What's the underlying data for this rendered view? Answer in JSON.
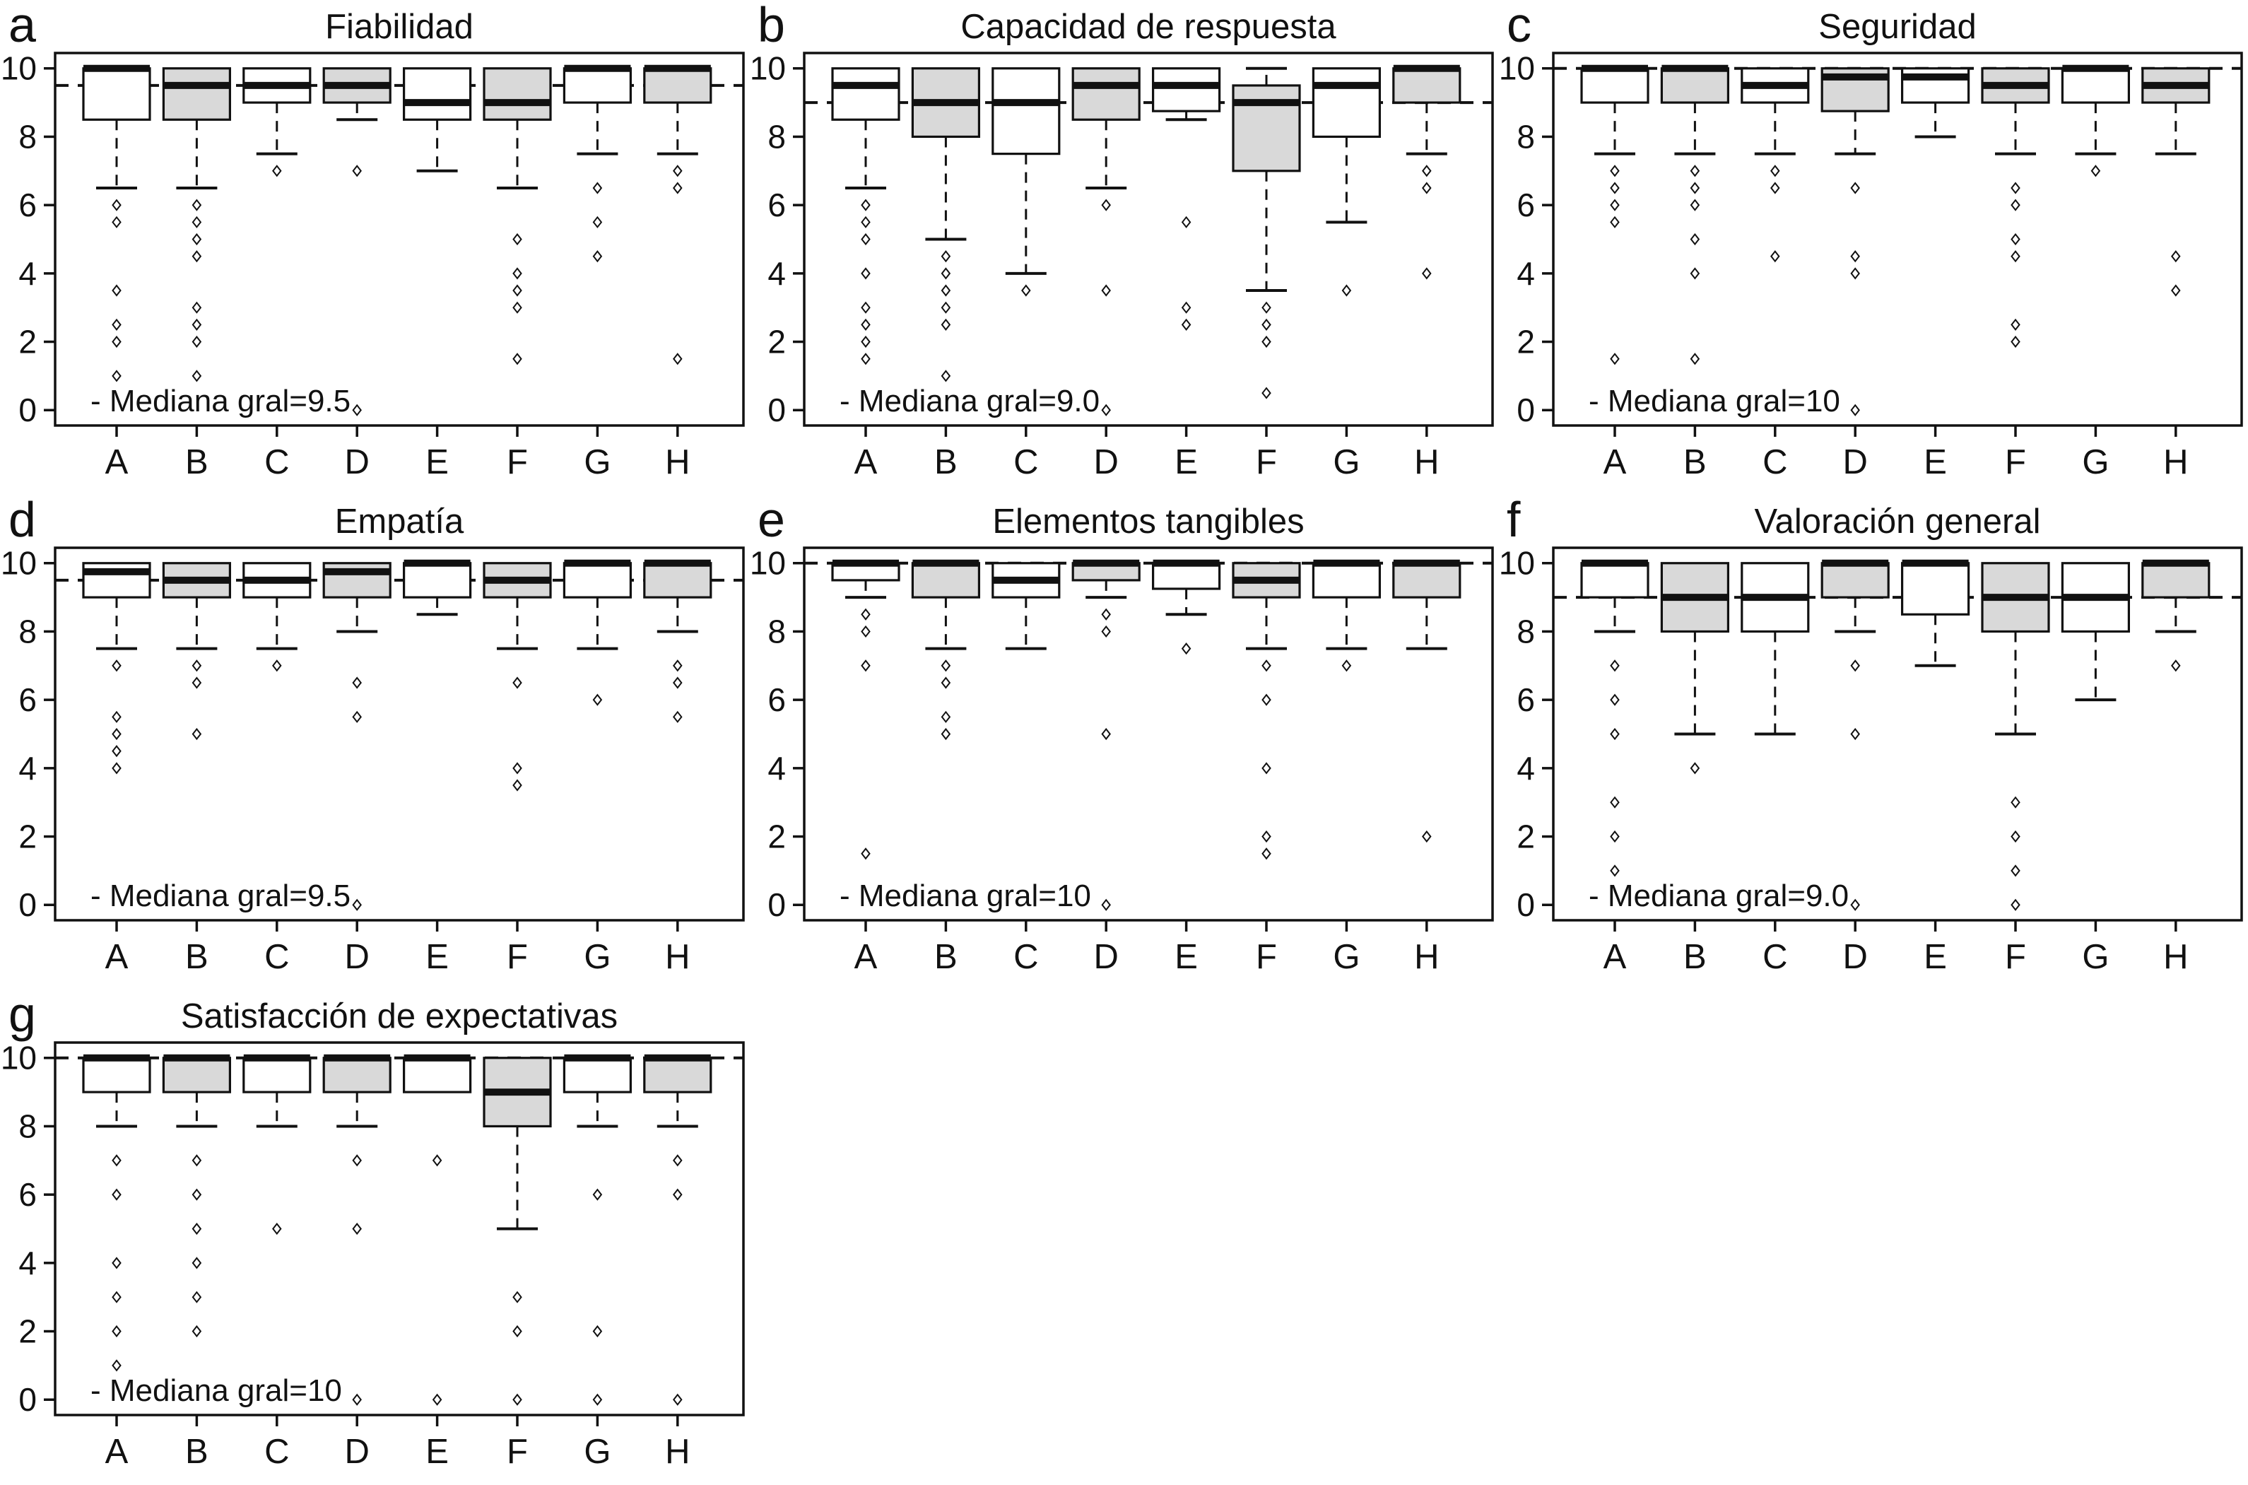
{
  "style": {
    "stroke_color": "#111111",
    "box_white": "#ffffff",
    "box_gray": "#d9d9d9",
    "background": "#ffffff"
  },
  "chart_data": {
    "type": "boxplot-grid",
    "ylim": [
      0,
      10
    ],
    "yticks": [
      0,
      2,
      4,
      6,
      8,
      10
    ],
    "grid": "off",
    "categories": [
      "A",
      "B",
      "C",
      "D",
      "E",
      "F",
      "G",
      "H"
    ],
    "fill_pattern": [
      "white",
      "gray",
      "white",
      "gray",
      "white",
      "gray",
      "white",
      "gray"
    ],
    "panels": [
      {
        "letter": "a",
        "title": "Fiabilidad",
        "overall_median": 9.5,
        "annotation": "- Mediana gral=9.5",
        "boxes": [
          {
            "category": "A",
            "q1": 8.5,
            "median": 10,
            "q3": 10,
            "whisker_low": 6.5,
            "whisker_high": 10,
            "outliers": [
              6,
              5.5,
              3.5,
              2.5,
              2,
              1
            ]
          },
          {
            "category": "B",
            "q1": 8.5,
            "median": 9.5,
            "q3": 10,
            "whisker_low": 6.5,
            "whisker_high": 10,
            "outliers": [
              6,
              5.5,
              5,
              4.5,
              3,
              2.5,
              2,
              1
            ]
          },
          {
            "category": "C",
            "q1": 9,
            "median": 9.5,
            "q3": 10,
            "whisker_low": 7.5,
            "whisker_high": 10,
            "outliers": [
              7
            ]
          },
          {
            "category": "D",
            "q1": 9,
            "median": 9.5,
            "q3": 10,
            "whisker_low": 8.5,
            "whisker_high": 10,
            "outliers": [
              7,
              0
            ]
          },
          {
            "category": "E",
            "q1": 8.5,
            "median": 9,
            "q3": 10,
            "whisker_low": 7,
            "whisker_high": 10,
            "outliers": []
          },
          {
            "category": "F",
            "q1": 8.5,
            "median": 9,
            "q3": 10,
            "whisker_low": 6.5,
            "whisker_high": 10,
            "outliers": [
              5,
              4,
              3.5,
              3,
              1.5
            ]
          },
          {
            "category": "G",
            "q1": 9,
            "median": 10,
            "q3": 10,
            "whisker_low": 7.5,
            "whisker_high": 10,
            "outliers": [
              6.5,
              5.5,
              4.5
            ]
          },
          {
            "category": "H",
            "q1": 9,
            "median": 10,
            "q3": 10,
            "whisker_low": 7.5,
            "whisker_high": 10,
            "outliers": [
              7,
              6.5,
              1.5
            ]
          }
        ]
      },
      {
        "letter": "b",
        "title": "Capacidad de respuesta",
        "overall_median": 9.0,
        "annotation": "- Mediana gral=9.0",
        "boxes": [
          {
            "category": "A",
            "q1": 8.5,
            "median": 9.5,
            "q3": 10,
            "whisker_low": 6.5,
            "whisker_high": 10,
            "outliers": [
              6,
              5.5,
              5,
              4,
              3,
              2.5,
              2,
              1.5
            ]
          },
          {
            "category": "B",
            "q1": 8,
            "median": 9,
            "q3": 10,
            "whisker_low": 5,
            "whisker_high": 10,
            "outliers": [
              4.5,
              4,
              3.5,
              3,
              2.5,
              1
            ]
          },
          {
            "category": "C",
            "q1": 7.5,
            "median": 9,
            "q3": 10,
            "whisker_low": 4,
            "whisker_high": 10,
            "outliers": [
              3.5
            ]
          },
          {
            "category": "D",
            "q1": 8.5,
            "median": 9.5,
            "q3": 10,
            "whisker_low": 6.5,
            "whisker_high": 10,
            "outliers": [
              6,
              3.5,
              0
            ]
          },
          {
            "category": "E",
            "q1": 8.75,
            "median": 9.5,
            "q3": 10,
            "whisker_low": 8.5,
            "whisker_high": 10,
            "outliers": [
              5.5,
              3,
              2.5
            ]
          },
          {
            "category": "F",
            "q1": 7,
            "median": 9,
            "q3": 9.5,
            "whisker_low": 3.5,
            "whisker_high": 10,
            "outliers": [
              3,
              2.5,
              2,
              0.5
            ]
          },
          {
            "category": "G",
            "q1": 8,
            "median": 9.5,
            "q3": 10,
            "whisker_low": 5.5,
            "whisker_high": 10,
            "outliers": [
              3.5
            ]
          },
          {
            "category": "H",
            "q1": 9,
            "median": 10,
            "q3": 10,
            "whisker_low": 7.5,
            "whisker_high": 10,
            "outliers": [
              7,
              6.5,
              4
            ]
          }
        ]
      },
      {
        "letter": "c",
        "title": "Seguridad",
        "overall_median": 10,
        "annotation": "- Mediana gral=10",
        "boxes": [
          {
            "category": "A",
            "q1": 9,
            "median": 10,
            "q3": 10,
            "whisker_low": 7.5,
            "whisker_high": 10,
            "outliers": [
              7,
              6.5,
              6,
              5.5,
              1.5
            ]
          },
          {
            "category": "B",
            "q1": 9,
            "median": 10,
            "q3": 10,
            "whisker_low": 7.5,
            "whisker_high": 10,
            "outliers": [
              7,
              6.5,
              6,
              5,
              4,
              1.5
            ]
          },
          {
            "category": "C",
            "q1": 9,
            "median": 9.5,
            "q3": 10,
            "whisker_low": 7.5,
            "whisker_high": 10,
            "outliers": [
              7,
              6.5,
              4.5
            ]
          },
          {
            "category": "D",
            "q1": 8.75,
            "median": 9.75,
            "q3": 10,
            "whisker_low": 7.5,
            "whisker_high": 10,
            "outliers": [
              6.5,
              4.5,
              4,
              0
            ]
          },
          {
            "category": "E",
            "q1": 9,
            "median": 9.75,
            "q3": 10,
            "whisker_low": 8,
            "whisker_high": 10,
            "outliers": []
          },
          {
            "category": "F",
            "q1": 9,
            "median": 9.5,
            "q3": 10,
            "whisker_low": 7.5,
            "whisker_high": 10,
            "outliers": [
              6.5,
              6,
              5,
              4.5,
              2.5,
              2
            ]
          },
          {
            "category": "G",
            "q1": 9,
            "median": 10,
            "q3": 10,
            "whisker_low": 7.5,
            "whisker_high": 10,
            "outliers": [
              7
            ]
          },
          {
            "category": "H",
            "q1": 9,
            "median": 9.5,
            "q3": 10,
            "whisker_low": 7.5,
            "whisker_high": 10,
            "outliers": [
              4.5,
              3.5
            ]
          }
        ]
      },
      {
        "letter": "d",
        "title": "Empatía",
        "overall_median": 9.5,
        "annotation": "- Mediana gral=9.5",
        "boxes": [
          {
            "category": "A",
            "q1": 9,
            "median": 9.75,
            "q3": 10,
            "whisker_low": 7.5,
            "whisker_high": 10,
            "outliers": [
              7,
              5.5,
              5,
              4.5,
              4
            ]
          },
          {
            "category": "B",
            "q1": 9,
            "median": 9.5,
            "q3": 10,
            "whisker_low": 7.5,
            "whisker_high": 10,
            "outliers": [
              7,
              6.5,
              5
            ]
          },
          {
            "category": "C",
            "q1": 9,
            "median": 9.5,
            "q3": 10,
            "whisker_low": 7.5,
            "whisker_high": 10,
            "outliers": [
              7
            ]
          },
          {
            "category": "D",
            "q1": 9,
            "median": 9.75,
            "q3": 10,
            "whisker_low": 8,
            "whisker_high": 10,
            "outliers": [
              6.5,
              5.5,
              0
            ]
          },
          {
            "category": "E",
            "q1": 9,
            "median": 10,
            "q3": 10,
            "whisker_low": 8.5,
            "whisker_high": 10,
            "outliers": []
          },
          {
            "category": "F",
            "q1": 9,
            "median": 9.5,
            "q3": 10,
            "whisker_low": 7.5,
            "whisker_high": 10,
            "outliers": [
              6.5,
              4,
              3.5
            ]
          },
          {
            "category": "G",
            "q1": 9,
            "median": 10,
            "q3": 10,
            "whisker_low": 7.5,
            "whisker_high": 10,
            "outliers": [
              6
            ]
          },
          {
            "category": "H",
            "q1": 9,
            "median": 10,
            "q3": 10,
            "whisker_low": 8,
            "whisker_high": 10,
            "outliers": [
              7,
              6.5,
              5.5
            ]
          }
        ]
      },
      {
        "letter": "e",
        "title": "Elementos tangibles",
        "overall_median": 10,
        "annotation": "- Mediana gral=10",
        "boxes": [
          {
            "category": "A",
            "q1": 9.5,
            "median": 10,
            "q3": 10,
            "whisker_low": 9,
            "whisker_high": 10,
            "outliers": [
              8.5,
              8,
              7,
              1.5
            ]
          },
          {
            "category": "B",
            "q1": 9,
            "median": 10,
            "q3": 10,
            "whisker_low": 7.5,
            "whisker_high": 10,
            "outliers": [
              7,
              6.5,
              5.5,
              5
            ]
          },
          {
            "category": "C",
            "q1": 9,
            "median": 9.5,
            "q3": 10,
            "whisker_low": 7.5,
            "whisker_high": 10,
            "outliers": []
          },
          {
            "category": "D",
            "q1": 9.5,
            "median": 10,
            "q3": 10,
            "whisker_low": 9,
            "whisker_high": 10,
            "outliers": [
              8.5,
              8,
              5,
              0
            ]
          },
          {
            "category": "E",
            "q1": 9.25,
            "median": 10,
            "q3": 10,
            "whisker_low": 8.5,
            "whisker_high": 10,
            "outliers": [
              7.5
            ]
          },
          {
            "category": "F",
            "q1": 9,
            "median": 9.5,
            "q3": 10,
            "whisker_low": 7.5,
            "whisker_high": 10,
            "outliers": [
              7,
              6,
              4,
              2,
              1.5
            ]
          },
          {
            "category": "G",
            "q1": 9,
            "median": 10,
            "q3": 10,
            "whisker_low": 7.5,
            "whisker_high": 10,
            "outliers": [
              7
            ]
          },
          {
            "category": "H",
            "q1": 9,
            "median": 10,
            "q3": 10,
            "whisker_low": 7.5,
            "whisker_high": 10,
            "outliers": [
              2
            ]
          }
        ]
      },
      {
        "letter": "f",
        "title": "Valoración general",
        "overall_median": 9.0,
        "annotation": "- Mediana gral=9.0",
        "boxes": [
          {
            "category": "A",
            "q1": 9,
            "median": 10,
            "q3": 10,
            "whisker_low": 8,
            "whisker_high": 10,
            "outliers": [
              7,
              6,
              5,
              3,
              2,
              1
            ]
          },
          {
            "category": "B",
            "q1": 8,
            "median": 9,
            "q3": 10,
            "whisker_low": 5,
            "whisker_high": 10,
            "outliers": [
              4
            ]
          },
          {
            "category": "C",
            "q1": 8,
            "median": 9,
            "q3": 10,
            "whisker_low": 5,
            "whisker_high": 10,
            "outliers": []
          },
          {
            "category": "D",
            "q1": 9,
            "median": 10,
            "q3": 10,
            "whisker_low": 8,
            "whisker_high": 10,
            "outliers": [
              7,
              5,
              0
            ]
          },
          {
            "category": "E",
            "q1": 8.5,
            "median": 10,
            "q3": 10,
            "whisker_low": 7,
            "whisker_high": 10,
            "outliers": []
          },
          {
            "category": "F",
            "q1": 8,
            "median": 9,
            "q3": 10,
            "whisker_low": 5,
            "whisker_high": 10,
            "outliers": [
              3,
              2,
              1,
              0
            ]
          },
          {
            "category": "G",
            "q1": 8,
            "median": 9,
            "q3": 10,
            "whisker_low": 6,
            "whisker_high": 10,
            "outliers": []
          },
          {
            "category": "H",
            "q1": 9,
            "median": 10,
            "q3": 10,
            "whisker_low": 8,
            "whisker_high": 10,
            "outliers": [
              7
            ]
          }
        ]
      },
      {
        "letter": "g",
        "title": "Satisfacción de expectativas",
        "overall_median": 10,
        "annotation": "- Mediana gral=10",
        "boxes": [
          {
            "category": "A",
            "q1": 9,
            "median": 10,
            "q3": 10,
            "whisker_low": 8,
            "whisker_high": 10,
            "outliers": [
              7,
              6,
              4,
              3,
              2,
              1
            ]
          },
          {
            "category": "B",
            "q1": 9,
            "median": 10,
            "q3": 10,
            "whisker_low": 8,
            "whisker_high": 10,
            "outliers": [
              7,
              6,
              5,
              4,
              3,
              2
            ]
          },
          {
            "category": "C",
            "q1": 9,
            "median": 10,
            "q3": 10,
            "whisker_low": 8,
            "whisker_high": 10,
            "outliers": [
              5
            ]
          },
          {
            "category": "D",
            "q1": 9,
            "median": 10,
            "q3": 10,
            "whisker_low": 8,
            "whisker_high": 10,
            "outliers": [
              7,
              5,
              0
            ]
          },
          {
            "category": "E",
            "q1": 9,
            "median": 10,
            "q3": 10,
            "whisker_low": 9,
            "whisker_high": 10,
            "outliers": [
              7,
              0
            ]
          },
          {
            "category": "F",
            "q1": 8,
            "median": 9,
            "q3": 10,
            "whisker_low": 5,
            "whisker_high": 10,
            "outliers": [
              3,
              2,
              0
            ]
          },
          {
            "category": "G",
            "q1": 9,
            "median": 10,
            "q3": 10,
            "whisker_low": 8,
            "whisker_high": 10,
            "outliers": [
              6,
              2,
              0
            ]
          },
          {
            "category": "H",
            "q1": 9,
            "median": 10,
            "q3": 10,
            "whisker_low": 8,
            "whisker_high": 10,
            "outliers": [
              7,
              6,
              0
            ]
          }
        ]
      }
    ]
  }
}
